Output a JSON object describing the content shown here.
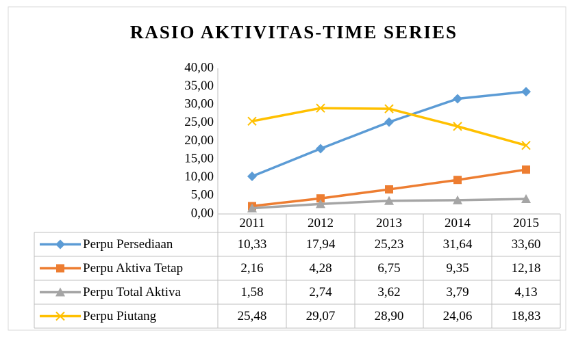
{
  "chart_data": {
    "type": "line",
    "title": "RASIO AKTIVITAS-TIME SERIES",
    "categories": [
      "2011",
      "2012",
      "2013",
      "2014",
      "2015"
    ],
    "series": [
      {
        "name": "Perpu Persediaan",
        "color": "#5b9bd5",
        "marker": "diamond",
        "values": [
          10.33,
          17.94,
          25.23,
          31.64,
          33.6
        ],
        "value_labels": [
          "10,33",
          "17,94",
          "25,23",
          "31,64",
          "33,60"
        ]
      },
      {
        "name": "Perpu Aktiva Tetap",
        "color": "#ed7d31",
        "marker": "square",
        "values": [
          2.16,
          4.28,
          6.75,
          9.35,
          12.18
        ],
        "value_labels": [
          "2,16",
          "4,28",
          "6,75",
          "9,35",
          "12,18"
        ]
      },
      {
        "name": "Perpu Total Aktiva",
        "color": "#a5a5a5",
        "marker": "triangle",
        "values": [
          1.58,
          2.74,
          3.62,
          3.79,
          4.13
        ],
        "value_labels": [
          "1,58",
          "2,74",
          "3,62",
          "3,79",
          "4,13"
        ]
      },
      {
        "name": "Perpu Piutang",
        "color": "#ffc000",
        "marker": "x",
        "values": [
          25.48,
          29.07,
          28.9,
          24.06,
          18.83
        ],
        "value_labels": [
          "25,48",
          "29,07",
          "28,90",
          "24,06",
          "18,83"
        ]
      }
    ],
    "ylim": [
      0,
      40
    ],
    "yticks": [
      {
        "value": 0,
        "label": "0,00"
      },
      {
        "value": 5,
        "label": "5,00"
      },
      {
        "value": 10,
        "label": "10,00"
      },
      {
        "value": 15,
        "label": "15,00"
      },
      {
        "value": 20,
        "label": "20,00"
      },
      {
        "value": 25,
        "label": "25,00"
      },
      {
        "value": 30,
        "label": "30,00"
      },
      {
        "value": 35,
        "label": "35,00"
      },
      {
        "value": 40,
        "label": "40,00"
      }
    ],
    "grid": false,
    "data_table": true
  }
}
